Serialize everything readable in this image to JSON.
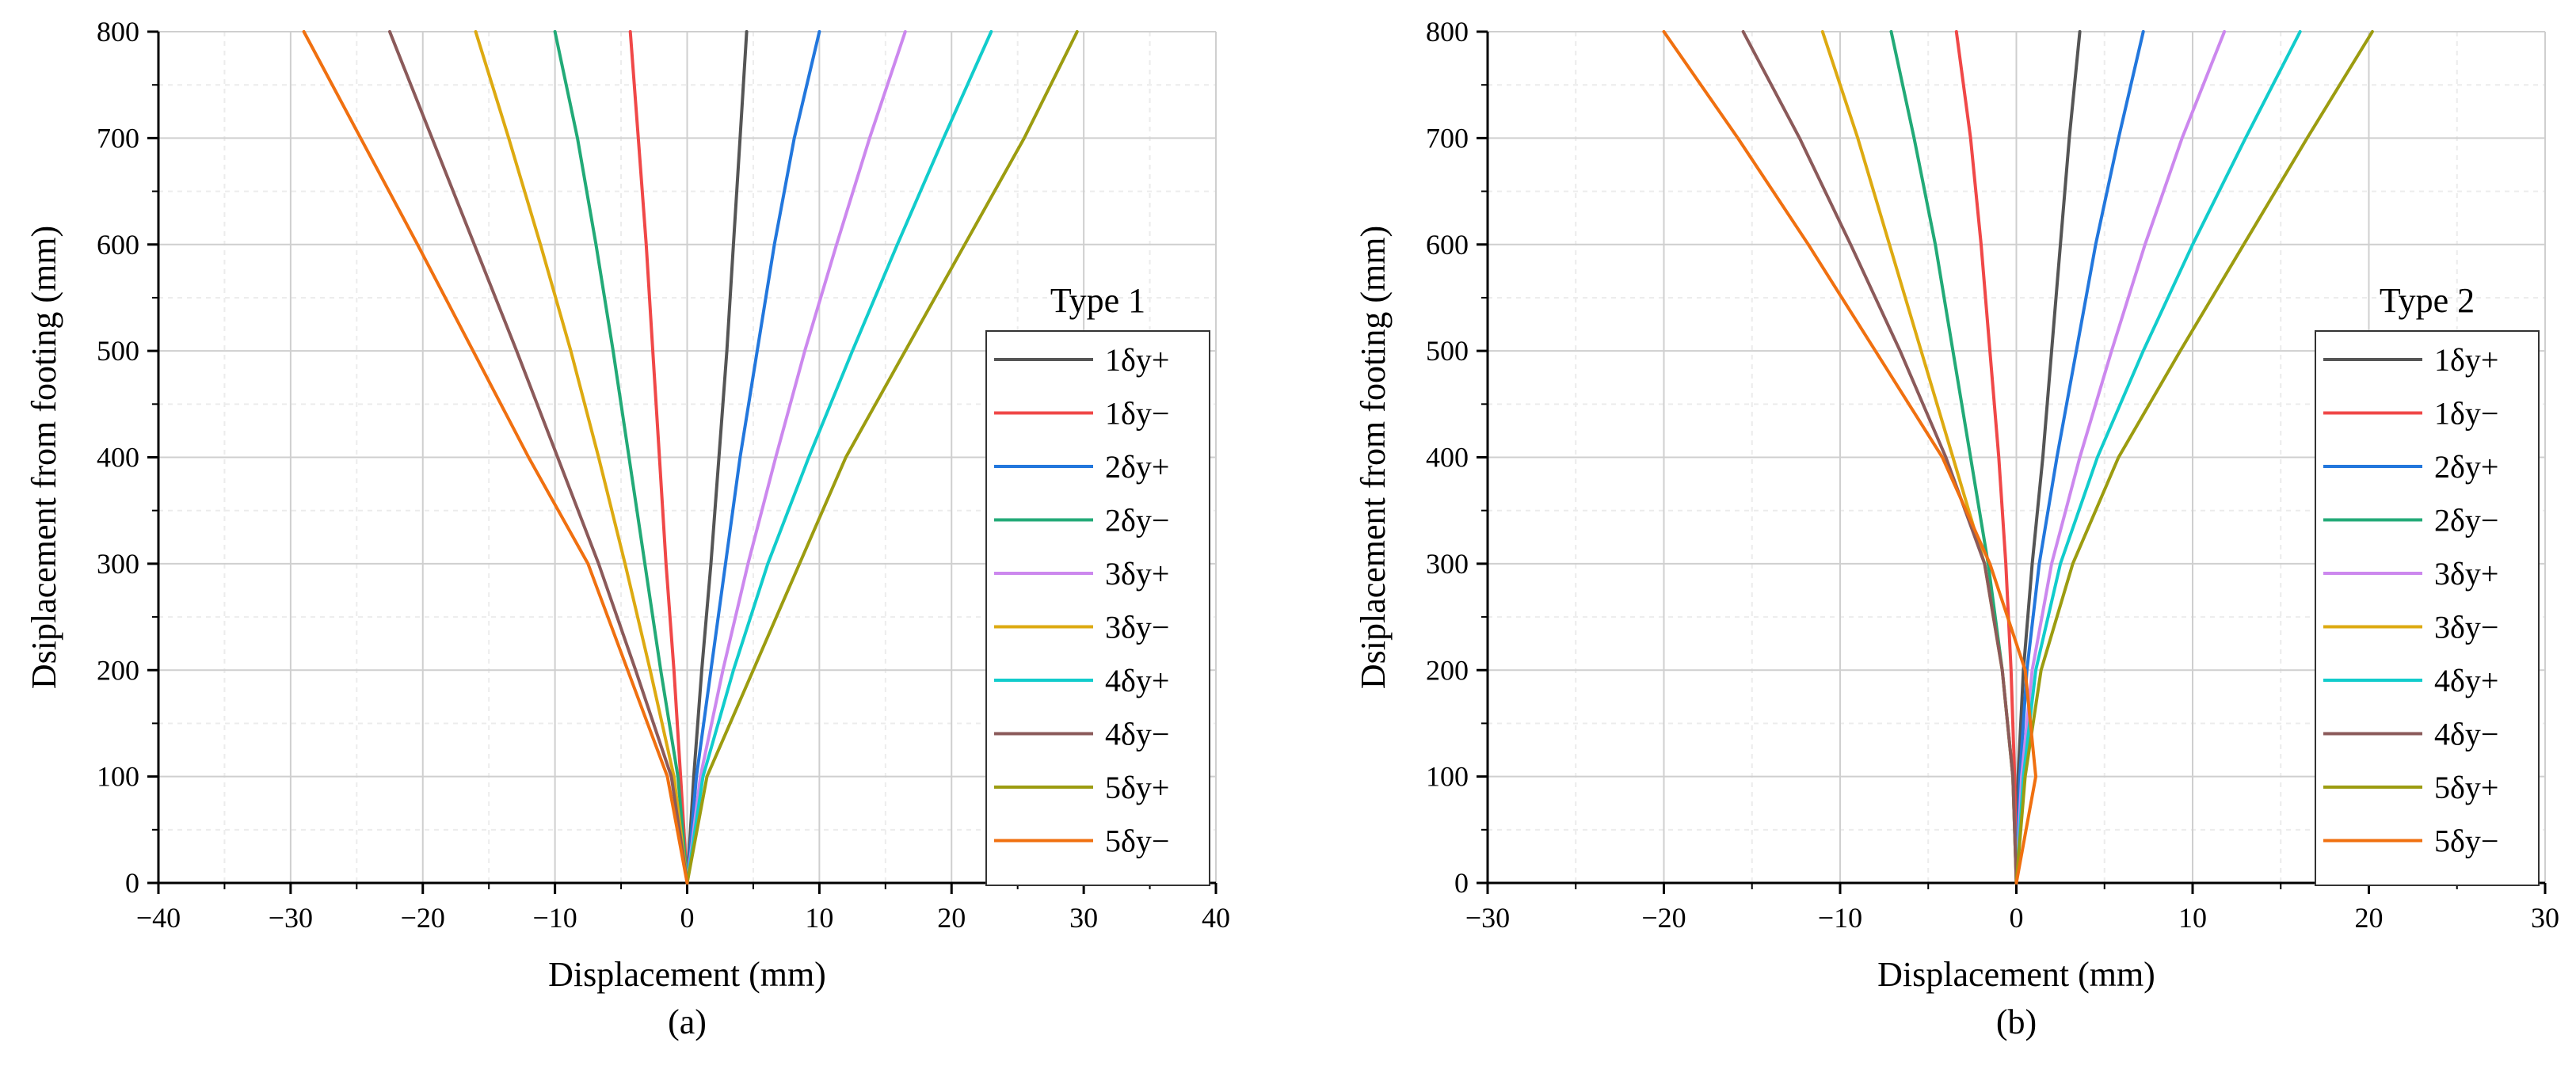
{
  "charts": [
    {
      "id": "a",
      "type": "line",
      "caption": "(a)",
      "xlabel": "Displacement (mm)",
      "ylabel": "Dsiplacement from footing (mm)",
      "xlim": [
        -40,
        40
      ],
      "ylim": [
        0,
        800
      ],
      "xticks": [
        -40,
        -30,
        -20,
        -10,
        0,
        10,
        20,
        30,
        40
      ],
      "xtick_labels": [
        "−40",
        "−30",
        "−20",
        "−10",
        "0",
        "10",
        "20",
        "30",
        "40"
      ],
      "yticks": [
        0,
        100,
        200,
        300,
        400,
        500,
        600,
        700,
        800
      ],
      "ytick_labels": [
        "0",
        "100",
        "200",
        "300",
        "400",
        "500",
        "600",
        "700",
        "800"
      ],
      "legend": {
        "title": "Type 1",
        "placement": "right-middle"
      },
      "series": [
        {
          "name": "1δy+",
          "color": "#555555",
          "points": [
            [
              0,
              0
            ],
            [
              0.5,
              100
            ],
            [
              1.1,
              200
            ],
            [
              1.8,
              300
            ],
            [
              2.4,
              400
            ],
            [
              3,
              500
            ],
            [
              3.5,
              600
            ],
            [
              4,
              700
            ],
            [
              4.5,
              800
            ]
          ]
        },
        {
          "name": "1δy−",
          "color": "#f04848",
          "points": [
            [
              0,
              0
            ],
            [
              -0.5,
              100
            ],
            [
              -1,
              200
            ],
            [
              -1.6,
              300
            ],
            [
              -2.1,
              400
            ],
            [
              -2.6,
              500
            ],
            [
              -3.1,
              600
            ],
            [
              -3.7,
              700
            ],
            [
              -4.3,
              800
            ]
          ]
        },
        {
          "name": "2δy+",
          "color": "#2277dd",
          "points": [
            [
              0,
              0
            ],
            [
              0.7,
              100
            ],
            [
              1.8,
              200
            ],
            [
              2.9,
              300
            ],
            [
              4,
              400
            ],
            [
              5.3,
              500
            ],
            [
              6.6,
              600
            ],
            [
              8.1,
              700
            ],
            [
              10,
              800
            ]
          ]
        },
        {
          "name": "2δy−",
          "color": "#22aa77",
          "points": [
            [
              0,
              0
            ],
            [
              -0.7,
              100
            ],
            [
              -2,
              200
            ],
            [
              -3.2,
              300
            ],
            [
              -4.4,
              400
            ],
            [
              -5.6,
              500
            ],
            [
              -6.9,
              600
            ],
            [
              -8.3,
              700
            ],
            [
              -10,
              800
            ]
          ]
        },
        {
          "name": "3δy+",
          "color": "#cc88ee",
          "points": [
            [
              0,
              0
            ],
            [
              1,
              100
            ],
            [
              2.7,
              200
            ],
            [
              4.6,
              300
            ],
            [
              6.7,
              400
            ],
            [
              8.9,
              500
            ],
            [
              11.3,
              600
            ],
            [
              13.8,
              700
            ],
            [
              16.5,
              800
            ]
          ]
        },
        {
          "name": "3δy−",
          "color": "#ddaa11",
          "points": [
            [
              0,
              0
            ],
            [
              -1,
              100
            ],
            [
              -2.8,
              200
            ],
            [
              -4.7,
              300
            ],
            [
              -6.7,
              400
            ],
            [
              -8.8,
              500
            ],
            [
              -11.1,
              600
            ],
            [
              -13.5,
              700
            ],
            [
              -16,
              800
            ]
          ]
        },
        {
          "name": "4δy+",
          "color": "#11cccc",
          "points": [
            [
              0,
              0
            ],
            [
              1.2,
              100
            ],
            [
              3.5,
              200
            ],
            [
              6.1,
              300
            ],
            [
              9.2,
              400
            ],
            [
              12.5,
              500
            ],
            [
              15.9,
              600
            ],
            [
              19.4,
              700
            ],
            [
              23,
              800
            ]
          ]
        },
        {
          "name": "4δy−",
          "color": "#8b5a5a",
          "points": [
            [
              0,
              0
            ],
            [
              -1.2,
              100
            ],
            [
              -3.9,
              200
            ],
            [
              -6.7,
              300
            ],
            [
              -9.8,
              400
            ],
            [
              -12.9,
              500
            ],
            [
              -16.1,
              600
            ],
            [
              -19.3,
              700
            ],
            [
              -22.5,
              800
            ]
          ]
        },
        {
          "name": "5δy+",
          "color": "#9c9c10",
          "points": [
            [
              0,
              0
            ],
            [
              1.5,
              100
            ],
            [
              5,
              200
            ],
            [
              8.5,
              300
            ],
            [
              12,
              400
            ],
            [
              16.5,
              500
            ],
            [
              21,
              600
            ],
            [
              25.5,
              700
            ],
            [
              29.5,
              800
            ]
          ]
        },
        {
          "name": "5δy−",
          "color": "#f07010",
          "points": [
            [
              0,
              0
            ],
            [
              -1.5,
              100
            ],
            [
              -4.5,
              200
            ],
            [
              -7.5,
              300
            ],
            [
              -12,
              400
            ],
            [
              -16.2,
              500
            ],
            [
              -20.4,
              600
            ],
            [
              -24.7,
              700
            ],
            [
              -29,
              800
            ]
          ]
        }
      ]
    },
    {
      "id": "b",
      "type": "line",
      "caption": "(b)",
      "xlabel": "Displacement (mm)",
      "ylabel": "Dsiplacement from footing (mm)",
      "xlim": [
        -30,
        30
      ],
      "ylim": [
        0,
        800
      ],
      "xticks": [
        -30,
        -20,
        -10,
        0,
        10,
        20,
        30
      ],
      "xtick_labels": [
        "−30",
        "−20",
        "−10",
        "0",
        "10",
        "20",
        "30"
      ],
      "yticks": [
        0,
        100,
        200,
        300,
        400,
        500,
        600,
        700,
        800
      ],
      "ytick_labels": [
        "0",
        "100",
        "200",
        "300",
        "400",
        "500",
        "600",
        "700",
        "800"
      ],
      "legend": {
        "title": "Type 2",
        "placement": "right-middle"
      },
      "series": [
        {
          "name": "1δy+",
          "color": "#555555",
          "points": [
            [
              0,
              0
            ],
            [
              0.1,
              100
            ],
            [
              0.4,
              200
            ],
            [
              0.9,
              300
            ],
            [
              1.5,
              400
            ],
            [
              2,
              500
            ],
            [
              2.5,
              600
            ],
            [
              3,
              700
            ],
            [
              3.6,
              800
            ]
          ]
        },
        {
          "name": "1δy−",
          "color": "#f04848",
          "points": [
            [
              0,
              0
            ],
            [
              -0.1,
              100
            ],
            [
              -0.3,
              200
            ],
            [
              -0.6,
              300
            ],
            [
              -1,
              400
            ],
            [
              -1.5,
              500
            ],
            [
              -2,
              600
            ],
            [
              -2.6,
              700
            ],
            [
              -3.4,
              800
            ]
          ]
        },
        {
          "name": "2δy+",
          "color": "#2277dd",
          "points": [
            [
              0,
              0
            ],
            [
              0.2,
              100
            ],
            [
              0.6,
              200
            ],
            [
              1.3,
              300
            ],
            [
              2.3,
              400
            ],
            [
              3.4,
              500
            ],
            [
              4.5,
              600
            ],
            [
              5.8,
              700
            ],
            [
              7.2,
              800
            ]
          ]
        },
        {
          "name": "2δy−",
          "color": "#22aa77",
          "points": [
            [
              0,
              0
            ],
            [
              -0.2,
              100
            ],
            [
              -0.8,
              200
            ],
            [
              -1.6,
              300
            ],
            [
              -2.6,
              400
            ],
            [
              -3.6,
              500
            ],
            [
              -4.6,
              600
            ],
            [
              -5.8,
              700
            ],
            [
              -7.1,
              800
            ]
          ]
        },
        {
          "name": "3δy+",
          "color": "#cc88ee",
          "points": [
            [
              0,
              0
            ],
            [
              0.3,
              100
            ],
            [
              0.9,
              200
            ],
            [
              2,
              300
            ],
            [
              3.6,
              400
            ],
            [
              5.4,
              500
            ],
            [
              7.3,
              600
            ],
            [
              9.4,
              700
            ],
            [
              11.8,
              800
            ]
          ]
        },
        {
          "name": "3δy−",
          "color": "#ddaa11",
          "points": [
            [
              0,
              0
            ],
            [
              -0.2,
              100
            ],
            [
              -0.8,
              200
            ],
            [
              -1.8,
              300
            ],
            [
              -3.6,
              400
            ],
            [
              -5.4,
              500
            ],
            [
              -7.2,
              600
            ],
            [
              -9,
              700
            ],
            [
              -11,
              800
            ]
          ]
        },
        {
          "name": "4δy+",
          "color": "#11cccc",
          "points": [
            [
              0,
              0
            ],
            [
              0.4,
              100
            ],
            [
              1.1,
              200
            ],
            [
              2.5,
              300
            ],
            [
              4.6,
              400
            ],
            [
              7.2,
              500
            ],
            [
              10,
              600
            ],
            [
              13,
              700
            ],
            [
              16.1,
              800
            ]
          ]
        },
        {
          "name": "4δy−",
          "color": "#8b5a5a",
          "points": [
            [
              0,
              0
            ],
            [
              -0.2,
              100
            ],
            [
              -0.8,
              200
            ],
            [
              -1.8,
              300
            ],
            [
              -4,
              400
            ],
            [
              -6.6,
              500
            ],
            [
              -9.4,
              600
            ],
            [
              -12.3,
              700
            ],
            [
              -15.5,
              800
            ]
          ]
        },
        {
          "name": "5δy+",
          "color": "#9c9c10",
          "points": [
            [
              0,
              0
            ],
            [
              0.5,
              100
            ],
            [
              1.4,
              200
            ],
            [
              3.2,
              300
            ],
            [
              5.8,
              400
            ],
            [
              9.3,
              500
            ],
            [
              12.9,
              600
            ],
            [
              16.5,
              700
            ],
            [
              20.2,
              800
            ]
          ]
        },
        {
          "name": "5δy−",
          "color": "#f07010",
          "points": [
            [
              0,
              0
            ],
            [
              1.1,
              100
            ],
            [
              0.5,
              200
            ],
            [
              -0.5,
              250
            ],
            [
              -1.5,
              300
            ],
            [
              -4.2,
              400
            ],
            [
              -8,
              500
            ],
            [
              -11.8,
              600
            ],
            [
              -15.8,
              700
            ],
            [
              -20,
              800
            ]
          ]
        }
      ]
    }
  ]
}
